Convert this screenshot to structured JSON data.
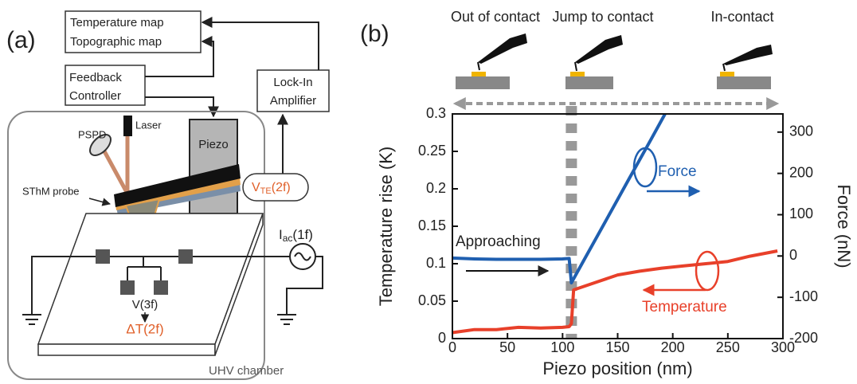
{
  "panel_a": {
    "label": "(a)",
    "outputs": [
      "Temperature map",
      "Topographic map"
    ],
    "feedback": [
      "Feedback",
      "Controller"
    ],
    "lockin": [
      "Lock-In",
      "Amplifier"
    ],
    "pspd": "PSPD",
    "laser": "Laser",
    "piezo": "Piezo",
    "probe": "SThM probe",
    "vte": {
      "main": "V",
      "sub": "TE",
      "arg": "(2f)"
    },
    "iac": {
      "main": "I",
      "sub": "ac",
      "arg": "(1f)"
    },
    "v3f": "V(3f)",
    "dt": "ΔT(2f)",
    "chamber": "UHV chamber"
  },
  "chart_data": {
    "type": "line",
    "panel_label": "(b)",
    "xlabel": "Piezo position (nm)",
    "ylabel": "Temperature rise (K)",
    "y2label": "Force (nN)",
    "phases": [
      "Out of contact",
      "Jump to contact",
      "In-contact"
    ],
    "annotations": {
      "approaching": "Approaching",
      "force": "Force",
      "temperature": "Temperature"
    },
    "xlim": [
      0,
      300
    ],
    "xticks": [
      0,
      50,
      100,
      150,
      200,
      250,
      300
    ],
    "ylim": [
      0,
      0.3
    ],
    "yticks": [
      0,
      0.05,
      0.1,
      0.15,
      0.2,
      0.25,
      0.3
    ],
    "y2lim": [
      -200,
      344
    ],
    "y2ticks": [
      -200,
      -100,
      0,
      100,
      200,
      300
    ],
    "marker_x": 108,
    "series": [
      {
        "name": "Force",
        "color": "#1f5fb0",
        "axis": "y2",
        "x": [
          0,
          20,
          40,
          60,
          80,
          100,
          106,
          108,
          120,
          140,
          160,
          180,
          193
        ],
        "values": [
          -5,
          -7,
          -8,
          -8,
          -8,
          -7,
          -6,
          -65,
          -7,
          89,
          185,
          281,
          344
        ]
      },
      {
        "name": "Temperature",
        "color": "#e8402a",
        "axis": "y",
        "x": [
          0,
          20,
          40,
          60,
          80,
          100,
          106,
          108,
          110,
          130,
          150,
          170,
          190,
          210,
          230,
          250,
          270,
          295
        ],
        "values": [
          0.008,
          0.012,
          0.012,
          0.015,
          0.014,
          0.015,
          0.016,
          0.02,
          0.065,
          0.075,
          0.085,
          0.09,
          0.094,
          0.097,
          0.1,
          0.103,
          0.11,
          0.117
        ]
      }
    ]
  }
}
